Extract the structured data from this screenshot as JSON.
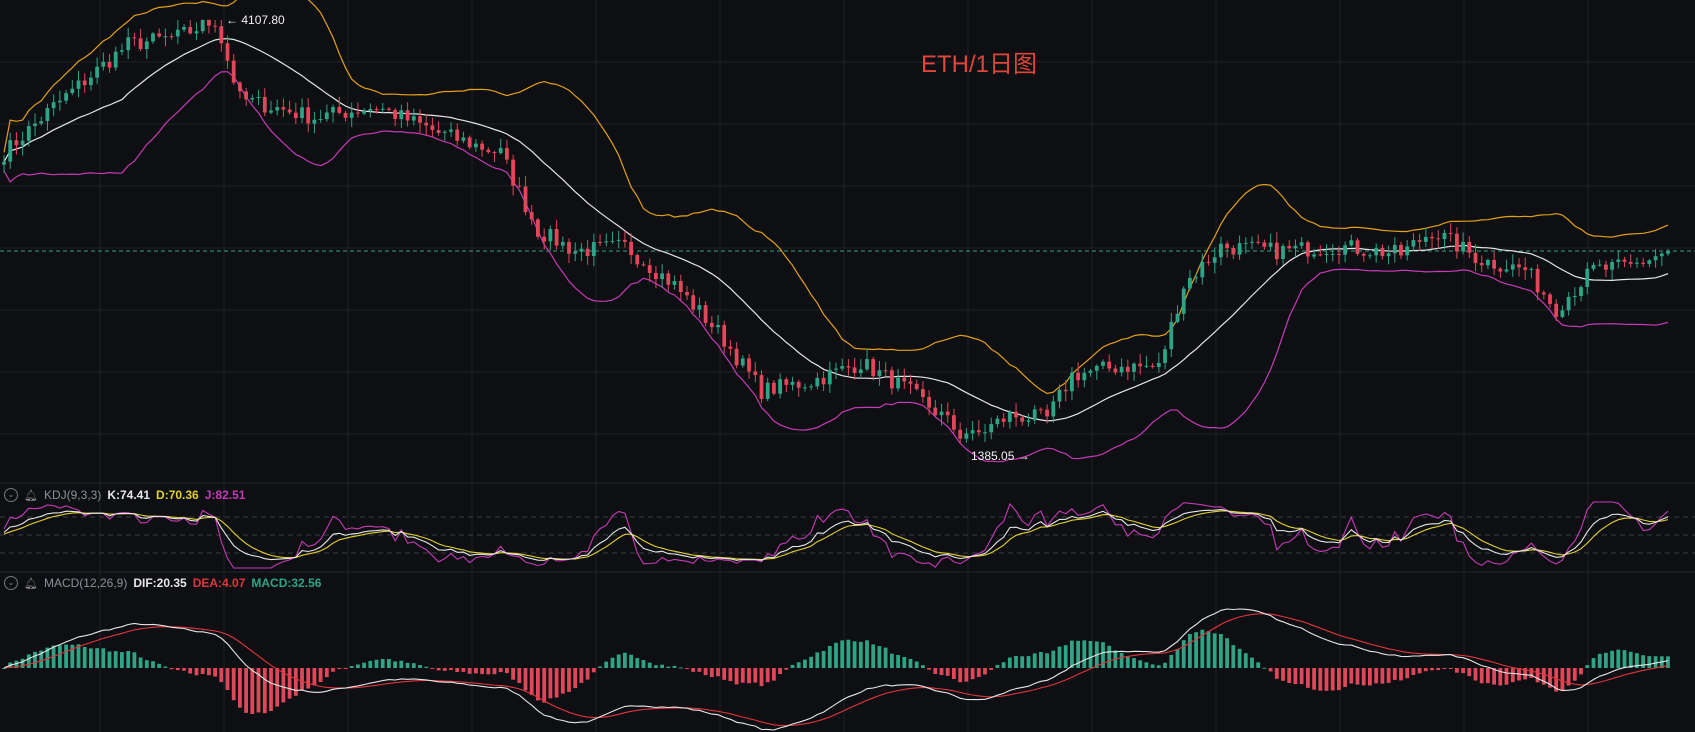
{
  "chart_title": "ETH/1日图",
  "colors": {
    "up": "#2fa386",
    "down": "#e0475a",
    "bb_upper": "#e3a019",
    "bb_middle": "#e6e6e6",
    "bb_lower": "#c63bb6",
    "kdj_k": "#e6e6e6",
    "kdj_d": "#e2d032",
    "kdj_j": "#c63bb6",
    "macd_dif": "#e6e6e6",
    "macd_dea": "#e0363d",
    "grid": "#1d2026",
    "current_price_line": "#2fa386"
  },
  "kdj": {
    "label": "KDJ(9,3,3)",
    "k_label": "K:74.41",
    "d_label": "D:70.36",
    "j_label": "J:82.51"
  },
  "macd": {
    "label": "MACD(12,26,9)",
    "dif_label": "DIF:20.35",
    "dea_label": "DEA:4.07",
    "macd_label": "MACD:32.56"
  },
  "annotations": {
    "high_label": "4107.80",
    "low_label": "1385.05"
  },
  "icons": [
    "collapse-icon",
    "bell-icon"
  ],
  "chart_data": {
    "type": "candlestick",
    "title": "ETH/1日图",
    "high": 4107.8,
    "low": 1385.05,
    "indicators": [
      "Bollinger Bands",
      "KDJ(9,3,3)",
      "MACD(12,26,9)"
    ],
    "kdj_latest": {
      "K": 74.41,
      "D": 70.36,
      "J": 82.51
    },
    "macd_latest": {
      "DIF": 20.35,
      "DEA": 4.07,
      "MACD": 32.56
    },
    "price_anchors": [
      {
        "index": 0,
        "price": 3250
      },
      {
        "index": 8,
        "price": 3550
      },
      {
        "index": 20,
        "price": 3950
      },
      {
        "index": 28,
        "price": 4000
      },
      {
        "index": 34,
        "price": 4107.8
      },
      {
        "index": 38,
        "price": 3600
      },
      {
        "index": 50,
        "price": 3480
      },
      {
        "index": 60,
        "price": 3550
      },
      {
        "index": 70,
        "price": 3380
      },
      {
        "index": 80,
        "price": 3250
      },
      {
        "index": 86,
        "price": 2750
      },
      {
        "index": 92,
        "price": 2620
      },
      {
        "index": 100,
        "price": 2650
      },
      {
        "index": 108,
        "price": 2400
      },
      {
        "index": 115,
        "price": 2100
      },
      {
        "index": 122,
        "price": 1720
      },
      {
        "index": 130,
        "price": 1780
      },
      {
        "index": 138,
        "price": 1900
      },
      {
        "index": 145,
        "price": 1740
      },
      {
        "index": 151,
        "price": 1560
      },
      {
        "index": 155,
        "price": 1400
      },
      {
        "index": 162,
        "price": 1560
      },
      {
        "index": 168,
        "price": 1540
      },
      {
        "index": 172,
        "price": 1820
      },
      {
        "index": 180,
        "price": 1880
      },
      {
        "index": 186,
        "price": 1870
      },
      {
        "index": 190,
        "price": 2400
      },
      {
        "index": 196,
        "price": 2650
      },
      {
        "index": 205,
        "price": 2620
      },
      {
        "index": 215,
        "price": 2650
      },
      {
        "index": 225,
        "price": 2600
      },
      {
        "index": 230,
        "price": 2750
      },
      {
        "index": 238,
        "price": 2560
      },
      {
        "index": 245,
        "price": 2500
      },
      {
        "index": 250,
        "price": 2250
      },
      {
        "index": 256,
        "price": 2500
      },
      {
        "index": 262,
        "price": 2520
      },
      {
        "index": 268,
        "price": 2620
      }
    ]
  }
}
